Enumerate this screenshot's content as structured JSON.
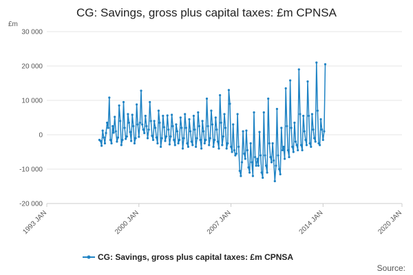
{
  "chart_data": {
    "type": "line",
    "title": "CG: Savings, gross plus capital taxes: £m CPNSA",
    "unit": "£m",
    "ylim": [
      -20000,
      30000
    ],
    "y_ticks": [
      -20000,
      -10000,
      0,
      10000,
      20000,
      30000
    ],
    "y_tick_labels": [
      "-20 000",
      "-10 000",
      "0",
      "10 000",
      "20 000",
      "30 000"
    ],
    "x_range": [
      1993,
      2020
    ],
    "x_ticks": [
      1993,
      2000,
      2007,
      2014,
      2020
    ],
    "x_tick_labels": [
      "1993 JAN",
      "2000 JAN",
      "2007 JAN",
      "2014 JAN",
      "2020 JAN"
    ],
    "color": "#1f83c4",
    "series": [
      {
        "name": "CG: Savings, gross plus capital taxes: £m CPNSA",
        "start": "1997 JAN",
        "frequency": "monthly",
        "values": [
          -1500,
          -1800,
          -3200,
          1200,
          -800,
          -2500,
          500,
          3500,
          2000,
          10800,
          -1500,
          -2500,
          2500,
          600,
          5200,
          1000,
          -2000,
          -800,
          8500,
          4000,
          -3000,
          -1500,
          9500,
          2000,
          -1200,
          -500,
          6000,
          3500,
          800,
          -1800,
          5800,
          2500,
          -2500,
          -1000,
          8800,
          3000,
          -600,
          3500,
          12800,
          3000,
          1500,
          500,
          5500,
          2500,
          -1000,
          1500,
          9500,
          4000,
          -300,
          -1500,
          4000,
          2000,
          -800,
          -2500,
          7000,
          3500,
          -3500,
          -1000,
          5500,
          2200,
          -1800,
          -500,
          5600,
          1500,
          -2800,
          -500,
          5800,
          2500,
          -1500,
          -3000,
          3000,
          1000,
          -2500,
          -1500,
          5000,
          2000,
          -4000,
          -1000,
          6000,
          2000,
          -2500,
          -3500,
          4500,
          1000,
          -2000,
          -3000,
          5500,
          1500,
          -3500,
          -1000,
          6500,
          2500,
          -1500,
          -4000,
          4000,
          1000,
          -2500,
          -1500,
          10500,
          2500,
          -3000,
          -1000,
          7000,
          3000,
          -3500,
          -1500,
          5000,
          1500,
          -2000,
          -4000,
          11500,
          3500,
          -3000,
          -500,
          6000,
          2000,
          -4000,
          -2500,
          13000,
          9000,
          -3500,
          -5000,
          3000,
          -4500,
          -6000,
          -5500,
          6000,
          -3500,
          -10500,
          -12000,
          -8000,
          1000,
          -5500,
          -7000,
          1200,
          -4500,
          -9500,
          -11000,
          -2500,
          -8000,
          -12000,
          6500,
          -6500,
          -9000,
          -7000,
          -9000,
          800,
          -6000,
          -11000,
          -12500,
          6500,
          -6000,
          -9000,
          -11000,
          10500,
          -2500,
          -6500,
          -8000,
          -2500,
          -7500,
          -13500,
          -9000,
          7500,
          -6000,
          -10000,
          -11500,
          2000,
          -4500,
          -3500,
          -7000,
          13500,
          2500,
          -4500,
          -6500,
          15800,
          2000,
          -3500,
          -5000,
          3500,
          -2000,
          -3000,
          -4500,
          19000,
          6000,
          -3000,
          -4500,
          5500,
          1000,
          -1500,
          -3000,
          15500,
          5500,
          -2500,
          -3500,
          6000,
          1500,
          -1000,
          -2000,
          21000,
          7000,
          -2500,
          -3000,
          4500,
          1500,
          -1500,
          1000,
          20500
        ]
      }
    ],
    "legend": {
      "label": "CG: Savings, gross plus capital taxes: £m CPNSA",
      "position": "bottom-center"
    },
    "source_label": "Source:"
  }
}
